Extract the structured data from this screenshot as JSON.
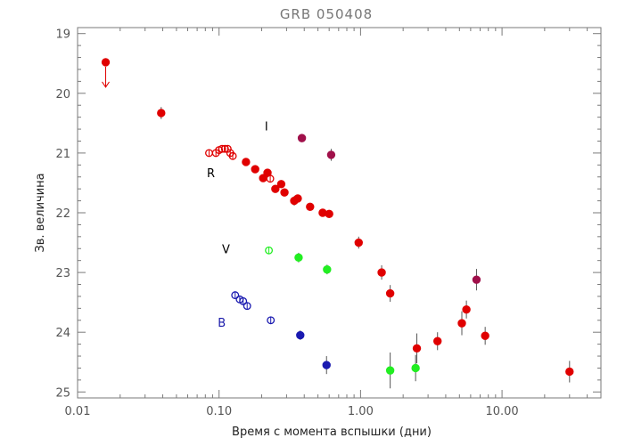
{
  "chart_data": {
    "type": "scatter",
    "title": "GRB 050408",
    "xlabel": "Время с момента вспышки (дни)",
    "ylabel": "Зв. величина",
    "x_scale": "log",
    "xlim": [
      0.01,
      50
    ],
    "ylim": [
      25.1,
      18.9
    ],
    "y_inverted": true,
    "grid": false,
    "x_ticks": [
      {
        "value": 0.01,
        "label": "0.01"
      },
      {
        "value": 0.1,
        "label": "0.10"
      },
      {
        "value": 1,
        "label": "1.00"
      },
      {
        "value": 10,
        "label": "10.00"
      }
    ],
    "y_ticks": [
      {
        "value": 19,
        "label": "19"
      },
      {
        "value": 20,
        "label": "20"
      },
      {
        "value": 21,
        "label": "21"
      },
      {
        "value": 22,
        "label": "22"
      },
      {
        "value": 23,
        "label": "23"
      },
      {
        "value": 24,
        "label": "24"
      },
      {
        "value": 25,
        "label": "25"
      }
    ],
    "annotations": [
      {
        "text": "I",
        "x": 0.21,
        "y": 20.55,
        "color": "#000000"
      },
      {
        "text": "R",
        "x": 0.082,
        "y": 21.33,
        "color": "#000000"
      },
      {
        "text": "V",
        "x": 0.105,
        "y": 22.6,
        "color": "#000000"
      },
      {
        "text": "B",
        "x": 0.098,
        "y": 23.83,
        "color": "#1a1aaa"
      }
    ],
    "series": [
      {
        "color": "#e00000",
        "points": [
          {
            "x": 0.0158,
            "y": 19.48,
            "filled": true,
            "upper_limit": true
          },
          {
            "x": 0.039,
            "y": 20.33,
            "err": 0.1,
            "filled": true
          },
          {
            "x": 0.085,
            "y": 21.0,
            "filled": false
          },
          {
            "x": 0.095,
            "y": 21.0,
            "filled": false
          },
          {
            "x": 0.1,
            "y": 20.95,
            "filled": false
          },
          {
            "x": 0.105,
            "y": 20.93,
            "filled": false
          },
          {
            "x": 0.11,
            "y": 20.93,
            "filled": false
          },
          {
            "x": 0.115,
            "y": 20.93,
            "filled": false
          },
          {
            "x": 0.12,
            "y": 21.0,
            "filled": false
          },
          {
            "x": 0.125,
            "y": 21.05,
            "filled": false
          },
          {
            "x": 0.155,
            "y": 21.15,
            "filled": true
          },
          {
            "x": 0.18,
            "y": 21.27,
            "filled": true
          },
          {
            "x": 0.205,
            "y": 21.42,
            "filled": true
          },
          {
            "x": 0.22,
            "y": 21.33,
            "filled": true
          },
          {
            "x": 0.23,
            "y": 21.43,
            "filled": false
          },
          {
            "x": 0.25,
            "y": 21.6,
            "filled": true
          },
          {
            "x": 0.275,
            "y": 21.52,
            "filled": true
          },
          {
            "x": 0.29,
            "y": 21.66,
            "filled": true
          },
          {
            "x": 0.34,
            "y": 21.8,
            "err": 0.08,
            "filled": true
          },
          {
            "x": 0.36,
            "y": 21.76,
            "filled": true
          },
          {
            "x": 0.44,
            "y": 21.9,
            "filled": true
          },
          {
            "x": 0.54,
            "y": 22.0,
            "filled": true
          },
          {
            "x": 0.6,
            "y": 22.02,
            "filled": true
          },
          {
            "x": 0.97,
            "y": 22.5,
            "err": 0.1,
            "filled": true
          },
          {
            "x": 1.41,
            "y": 23.0,
            "err": 0.12,
            "filled": true
          },
          {
            "x": 1.62,
            "y": 23.35,
            "err": 0.14,
            "filled": true
          },
          {
            "x": 2.5,
            "y": 24.27,
            "err": 0.25,
            "filled": true
          },
          {
            "x": 3.5,
            "y": 24.15,
            "err": 0.15,
            "filled": true
          },
          {
            "x": 5.2,
            "y": 23.85,
            "err": 0.2,
            "filled": true
          },
          {
            "x": 5.6,
            "y": 23.62,
            "err": 0.15,
            "filled": true
          },
          {
            "x": 7.6,
            "y": 24.06,
            "err": 0.15,
            "filled": true
          },
          {
            "x": 30.0,
            "y": 24.66,
            "err": 0.18,
            "filled": true
          }
        ]
      },
      {
        "color": "#a0104a",
        "points": [
          {
            "x": 0.385,
            "y": 20.75,
            "filled": true
          },
          {
            "x": 0.62,
            "y": 21.03,
            "err": 0.1,
            "filled": true
          },
          {
            "x": 6.6,
            "y": 23.12,
            "err": 0.18,
            "filled": true
          }
        ]
      },
      {
        "color": "#22ee22",
        "points": [
          {
            "x": 0.225,
            "y": 22.63,
            "filled": false
          },
          {
            "x": 0.365,
            "y": 22.75,
            "err": 0.08,
            "filled": true
          },
          {
            "x": 0.58,
            "y": 22.95,
            "err": 0.08,
            "filled": true
          },
          {
            "x": 1.62,
            "y": 24.64,
            "err": 0.3,
            "filled": true
          },
          {
            "x": 2.45,
            "y": 24.6,
            "err": 0.22,
            "filled": true
          }
        ]
      },
      {
        "color": "#1a1ab0",
        "points": [
          {
            "x": 0.13,
            "y": 23.38,
            "filled": false
          },
          {
            "x": 0.14,
            "y": 23.45,
            "filled": false
          },
          {
            "x": 0.148,
            "y": 23.48,
            "filled": false
          },
          {
            "x": 0.158,
            "y": 23.56,
            "filled": false
          },
          {
            "x": 0.232,
            "y": 23.8,
            "filled": false
          },
          {
            "x": 0.375,
            "y": 24.05,
            "err": 0.08,
            "filled": true
          },
          {
            "x": 0.575,
            "y": 24.55,
            "err": 0.15,
            "filled": true
          }
        ]
      }
    ]
  }
}
